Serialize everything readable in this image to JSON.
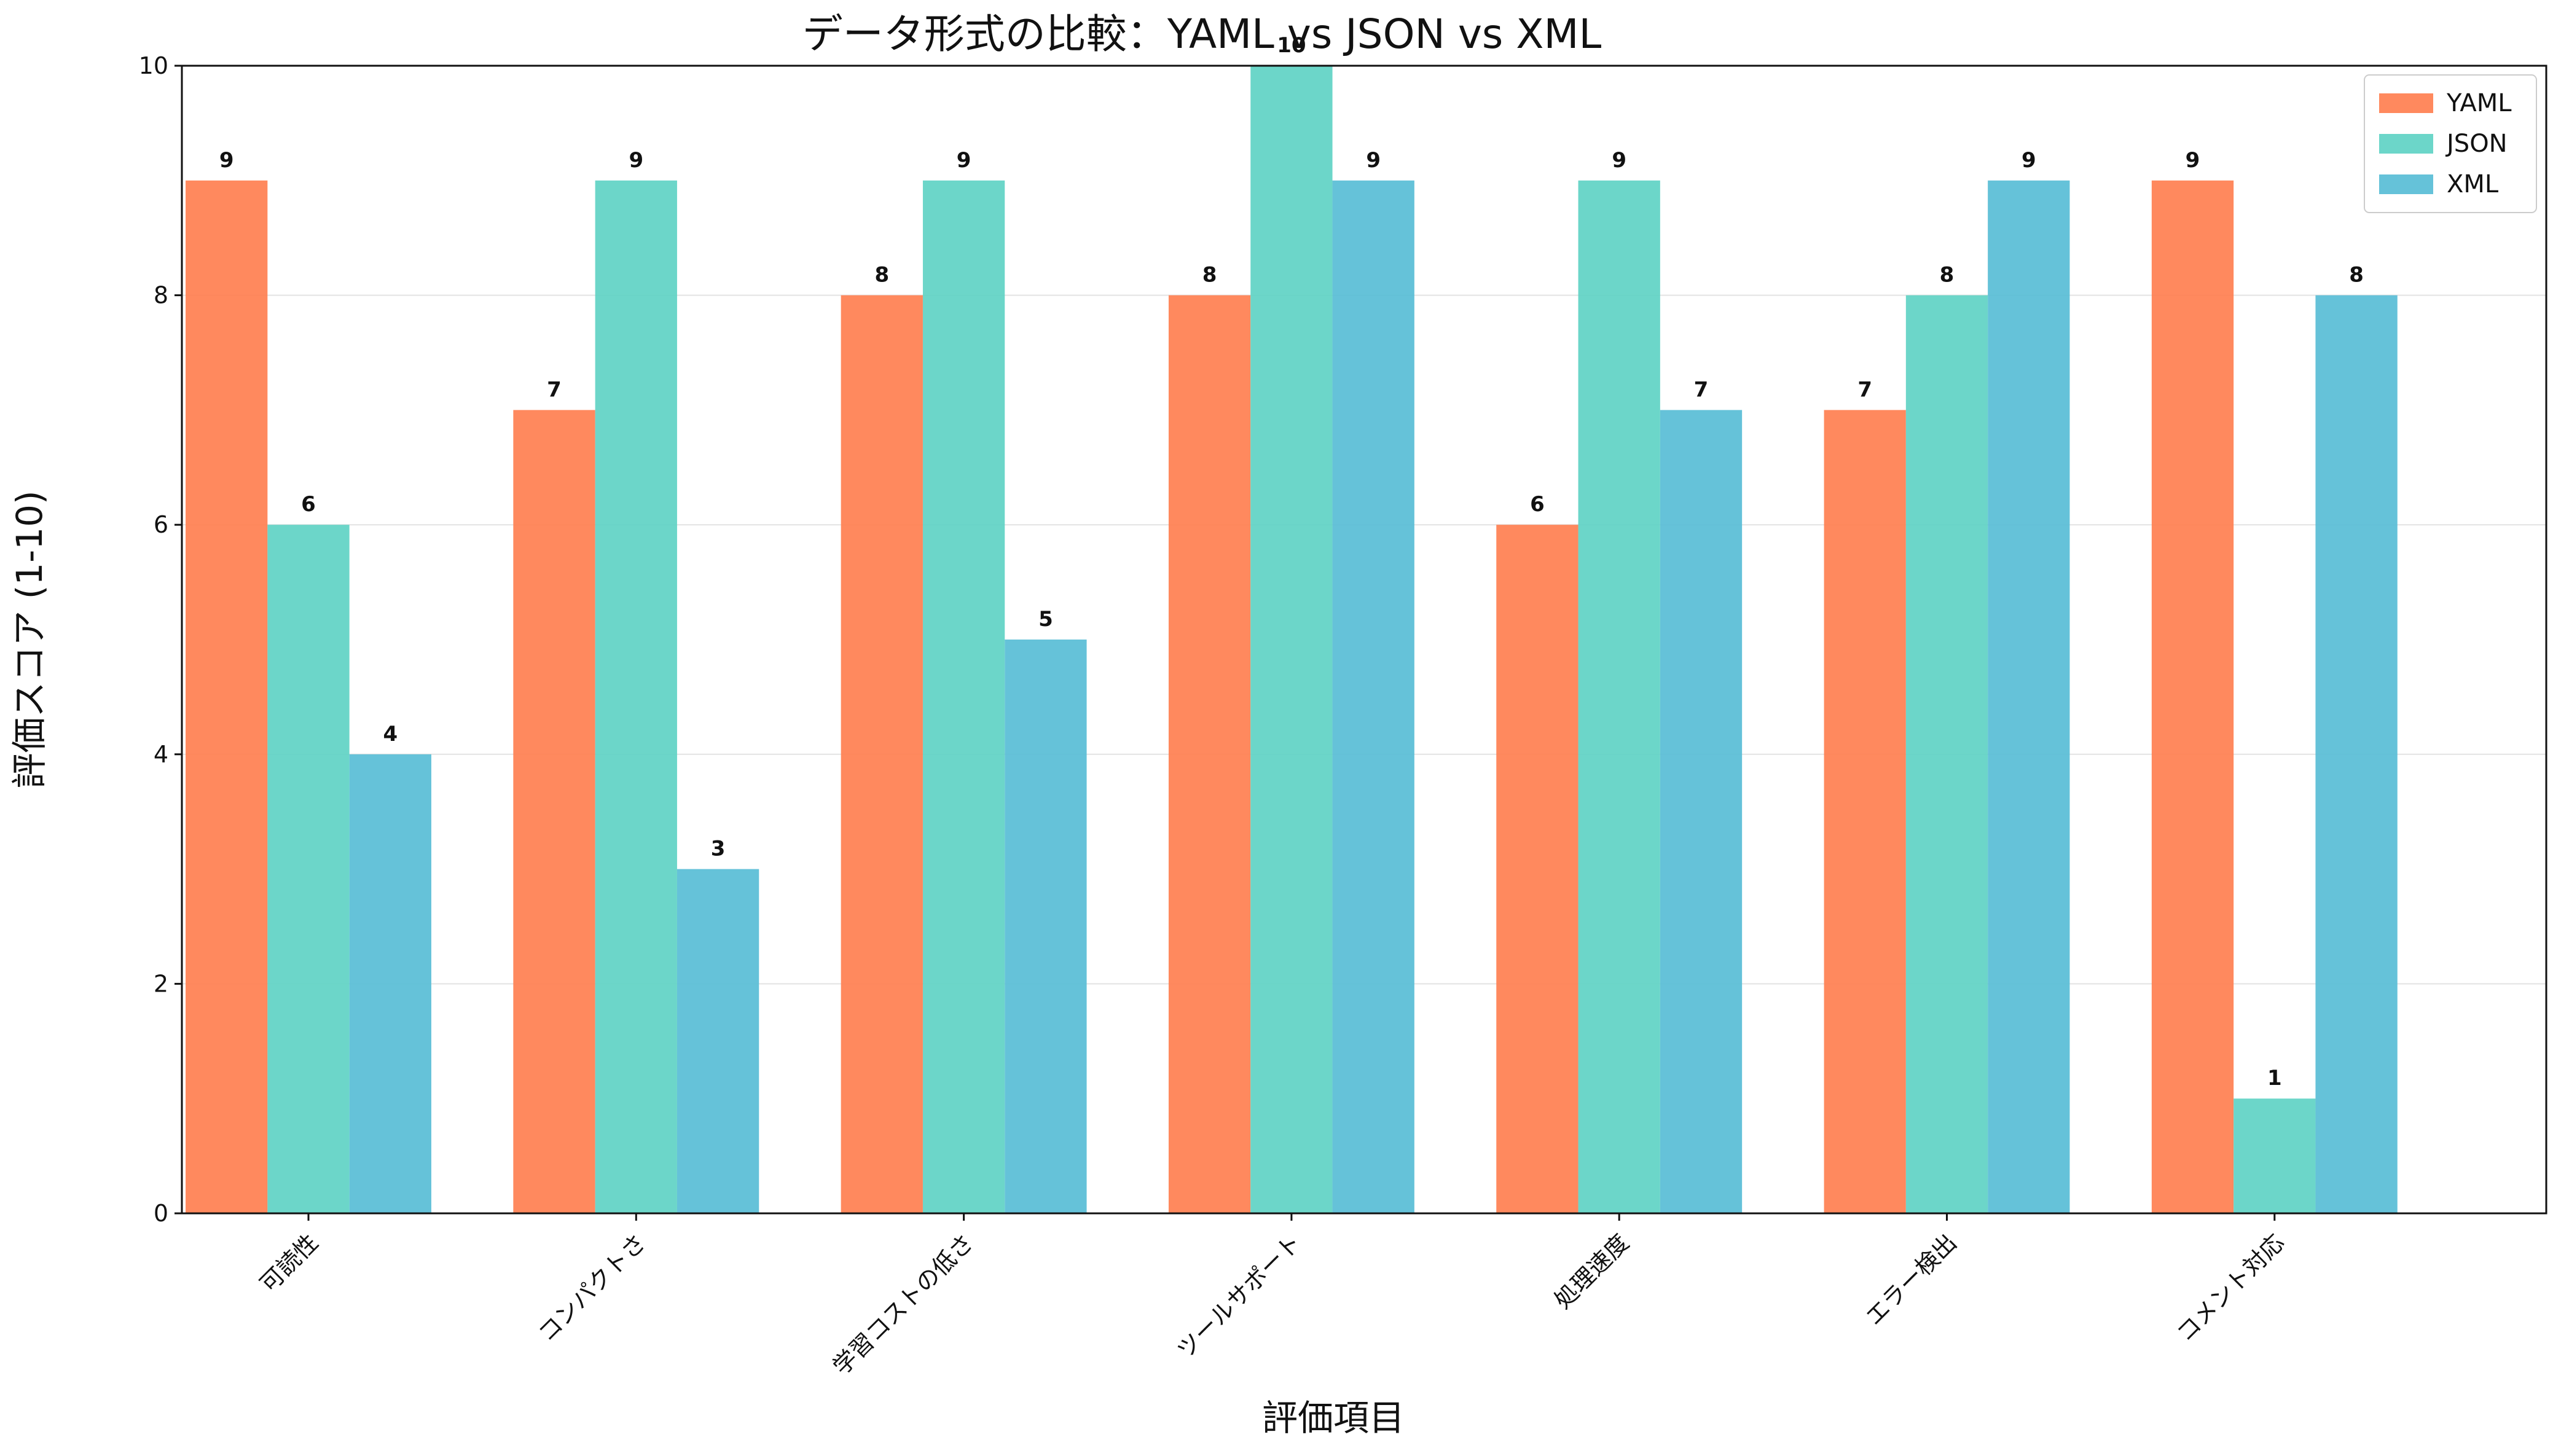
{
  "chart_data": {
    "type": "bar",
    "title": "データ形式の比較：YAML vs JSON vs XML",
    "xlabel": "評価項目",
    "ylabel": "評価スコア (1-10)",
    "categories": [
      "可読性",
      "コンパクトさ",
      "学習コストの低さ",
      "ツールサポート",
      "処理速度",
      "エラー検出",
      "コメント対応"
    ],
    "series": [
      {
        "name": "YAML",
        "color": "#FF7F50",
        "values": [
          9,
          7,
          8,
          8,
          6,
          7,
          9
        ]
      },
      {
        "name": "JSON",
        "color": "#5FD3C4",
        "values": [
          6,
          9,
          9,
          10,
          9,
          8,
          1
        ]
      },
      {
        "name": "XML",
        "color": "#58BDD6",
        "values": [
          4,
          3,
          5,
          9,
          7,
          9,
          8
        ]
      }
    ],
    "ylim": [
      0,
      10
    ],
    "yticks": [
      0,
      2,
      4,
      6,
      8,
      10
    ],
    "grid": "y",
    "legend": "top-right"
  }
}
